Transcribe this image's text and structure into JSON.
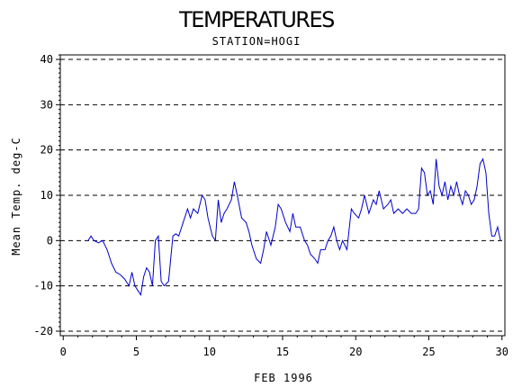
{
  "chart_data": {
    "type": "line",
    "title": "TEMPERATURES",
    "subtitle": "STATION=HOGI",
    "xlabel": "FEB 1996",
    "ylabel": "Mean Temp. deg-C",
    "xlim": [
      -0.2,
      30.2
    ],
    "ylim": [
      -21,
      41
    ],
    "x_ticks": [
      0,
      5,
      10,
      15,
      20,
      25,
      30
    ],
    "y_ticks": [
      -20,
      -10,
      0,
      10,
      20,
      30,
      40
    ],
    "y_tick_labels": [
      "-20",
      "-10",
      "0",
      "10",
      "20",
      "30",
      "40"
    ],
    "grid": "horizontal dashed",
    "series": [
      {
        "color": "#0000cc",
        "x": [
          1.7,
          1.9,
          2.1,
          2.4,
          2.7,
          3.0,
          3.3,
          3.6,
          3.9,
          4.2,
          4.5,
          4.7,
          4.9,
          5.1,
          5.3,
          5.5,
          5.7,
          5.9,
          6.1,
          6.3,
          6.5,
          6.7,
          6.9,
          7.2,
          7.5,
          7.7,
          7.9,
          8.2,
          8.5,
          8.7,
          8.9,
          9.2,
          9.5,
          9.7,
          9.9,
          10.2,
          10.4,
          10.6,
          10.8,
          11.0,
          11.2,
          11.5,
          11.7,
          11.9,
          12.2,
          12.5,
          12.7,
          12.9,
          13.2,
          13.5,
          13.7,
          13.9,
          14.2,
          14.5,
          14.7,
          14.9,
          15.2,
          15.5,
          15.7,
          15.9,
          16.2,
          16.5,
          16.7,
          16.9,
          17.2,
          17.4,
          17.6,
          17.9,
          18.1,
          18.3,
          18.5,
          18.7,
          18.9,
          19.1,
          19.4,
          19.7,
          19.9,
          20.2,
          20.4,
          20.6,
          20.9,
          21.2,
          21.4,
          21.6,
          21.9,
          22.2,
          22.4,
          22.6,
          22.9,
          23.2,
          23.5,
          23.8,
          24.1,
          24.3,
          24.5,
          24.7,
          24.9,
          25.1,
          25.3,
          25.5,
          25.7,
          25.9,
          26.1,
          26.3,
          26.5,
          26.7,
          26.9,
          27.1,
          27.3,
          27.5,
          27.7,
          27.9,
          28.1,
          28.3,
          28.5,
          28.7,
          28.9,
          29.1,
          29.3,
          29.5,
          29.7,
          29.9
        ],
        "values": [
          0,
          1,
          0,
          -0.5,
          0,
          -2,
          -5,
          -7,
          -7.5,
          -8.5,
          -10,
          -7,
          -10,
          -11,
          -12,
          -8,
          -6,
          -7,
          -10,
          0,
          1,
          -9,
          -10,
          -9,
          1,
          1.5,
          1,
          4,
          7,
          5,
          7,
          6,
          10,
          9,
          5,
          1,
          0,
          9,
          4,
          6,
          7,
          9,
          13,
          10,
          5,
          4,
          2,
          -1,
          -4,
          -5,
          -2,
          2,
          -1,
          3,
          8,
          7,
          4,
          2,
          6,
          3,
          3,
          0,
          -1,
          -3,
          -4,
          -5,
          -2,
          -2,
          0,
          1,
          3,
          0,
          -2,
          0,
          -2,
          7,
          6,
          5,
          7,
          10,
          6,
          9,
          8,
          11,
          7,
          8,
          9,
          6,
          7,
          6,
          7,
          6,
          6,
          7,
          16,
          15,
          10,
          11,
          8,
          18,
          12,
          10,
          13,
          9,
          12,
          10,
          13,
          10,
          8,
          11,
          10,
          8,
          9,
          12,
          17,
          18,
          15,
          6,
          1,
          1,
          3,
          0
        ]
      }
    ]
  }
}
